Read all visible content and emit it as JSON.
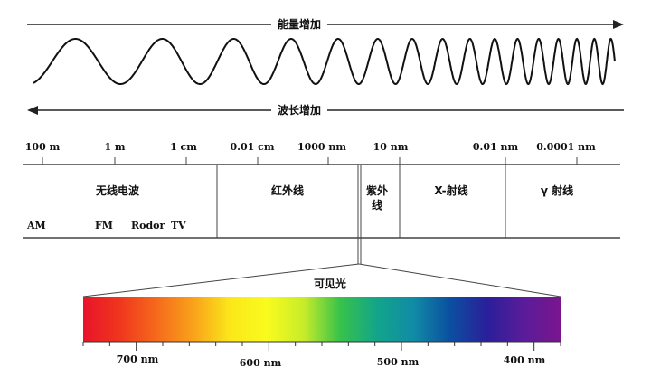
{
  "energy_arrow_label": "能量增加",
  "wavelength_arrow_label": "波长增加",
  "scale_ticks": [
    "100 m",
    "1 m",
    "1 cm",
    "0.01 cm",
    "1000 nm",
    "10 nm",
    "0.01 nm",
    "0.0001 nm"
  ],
  "regions": {
    "radio": "无线电波",
    "infrared": "红外线",
    "ultraviolet_line1": "紫外",
    "ultraviolet_line2": "线",
    "xray": "X-射线",
    "gamma": "γ 射线"
  },
  "radio_bands": [
    "AM",
    "FM",
    "Rodor",
    "TV"
  ],
  "visible_label": "可见光",
  "visible_ticks": [
    "700 nm",
    "600 nm",
    "500 nm",
    "400 nm"
  ],
  "colors": {
    "line": "#333333",
    "spectrum": [
      "#e8142a",
      "#f0361e",
      "#f56a1c",
      "#f9a21a",
      "#fbe71a",
      "#f9fb1e",
      "#c7ec2a",
      "#38c24a",
      "#12a58a",
      "#118ba6",
      "#0b4fa0",
      "#2a1f9a",
      "#5a1c9a",
      "#7a158e"
    ]
  }
}
